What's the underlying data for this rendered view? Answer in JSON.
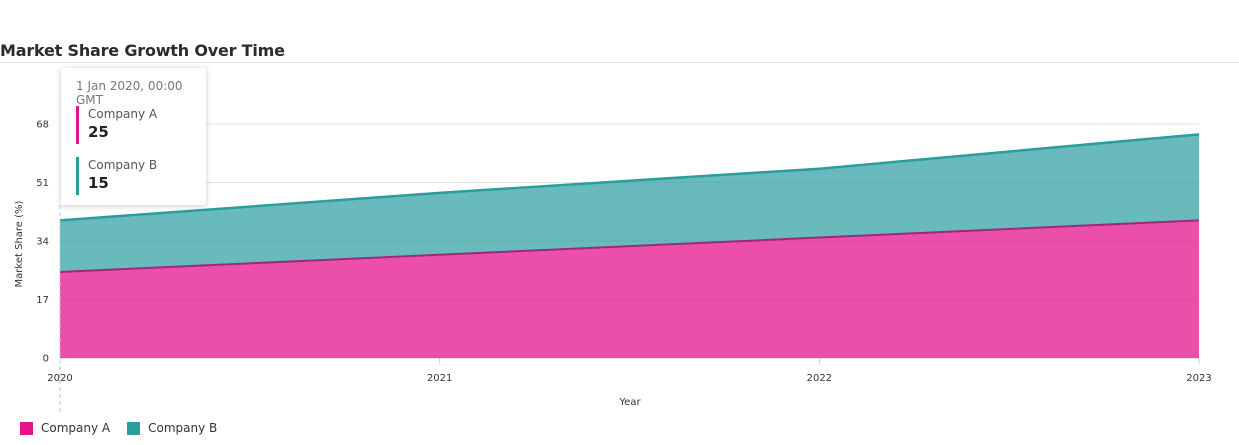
{
  "colors": {
    "company_a": "#e6148c",
    "company_b": "#2a9d9f"
  },
  "chart_data": {
    "type": "area",
    "stacked": true,
    "title": "Market Share Growth Over Time",
    "xlabel": "Year",
    "ylabel": "Market Share (%)",
    "x": [
      "2020",
      "2021",
      "2022",
      "2023"
    ],
    "y_ticks": [
      "0",
      "17",
      "34",
      "51",
      "68"
    ],
    "ylim": [
      0,
      68
    ],
    "grid": true,
    "legend_position": "bottom-left",
    "series": [
      {
        "name": "Company A",
        "values": [
          25,
          30,
          35,
          40
        ]
      },
      {
        "name": "Company B",
        "values": [
          15,
          18,
          20,
          25
        ]
      }
    ]
  },
  "tooltip": {
    "date": "1 Jan 2020, 00:00 GMT",
    "rows": [
      {
        "name": "Company A",
        "value": "25"
      },
      {
        "name": "Company B",
        "value": "15"
      }
    ]
  }
}
